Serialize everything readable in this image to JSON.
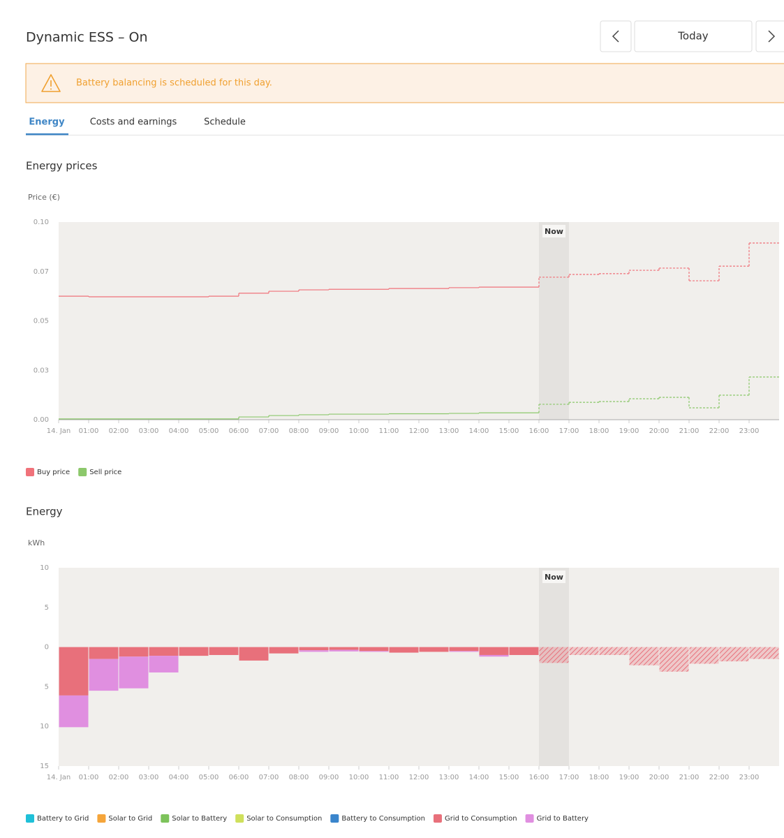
{
  "header": {
    "title": "Dynamic ESS – On",
    "date_label": "Today"
  },
  "alert": "Battery balancing is scheduled for this day.",
  "tabs": [
    "Energy",
    "Costs and earnings",
    "Schedule"
  ],
  "chart_data": [
    {
      "type": "line",
      "title": "Energy prices",
      "y_label": "Price (€)",
      "categories": [
        "14. Jan",
        "01:00",
        "02:00",
        "03:00",
        "04:00",
        "05:00",
        "06:00",
        "07:00",
        "08:00",
        "09:00",
        "10:00",
        "11:00",
        "12:00",
        "13:00",
        "14:00",
        "15:00",
        "16:00",
        "17:00",
        "18:00",
        "19:00",
        "20:00",
        "21:00",
        "22:00",
        "23:00"
      ],
      "now": {
        "label": "Now",
        "from": "16:00",
        "to": "17:00"
      },
      "ylim": [
        0,
        0.1
      ],
      "yticks": [
        {
          "value": 0,
          "label": "0.00"
        },
        {
          "value": 0.025,
          "label": "0.03"
        },
        {
          "value": 0.05,
          "label": "0.05"
        },
        {
          "value": 0.075,
          "label": "0.07"
        },
        {
          "value": 0.1,
          "label": "0.10"
        }
      ],
      "series": [
        {
          "name": "Buy price",
          "color": "#f0727a",
          "values": [
            0.0625,
            0.0622,
            0.0622,
            0.0622,
            0.0622,
            0.0625,
            0.064,
            0.065,
            0.0657,
            0.066,
            0.066,
            0.0664,
            0.0664,
            0.0668,
            0.0671,
            0.0671,
            0.0721,
            0.0735,
            0.0739,
            0.0756,
            0.0767,
            0.0703,
            0.0777,
            0.0894
          ]
        },
        {
          "name": "Sell price",
          "color": "#8cc86b",
          "values": [
            0.0004,
            0.0004,
            0.0004,
            0.0004,
            0.0004,
            0.0004,
            0.0014,
            0.0021,
            0.0025,
            0.0028,
            0.0028,
            0.003,
            0.003,
            0.0032,
            0.0035,
            0.0035,
            0.0078,
            0.0088,
            0.0092,
            0.0106,
            0.0113,
            0.006,
            0.0124,
            0.0216
          ]
        }
      ]
    },
    {
      "type": "bar",
      "title": "Energy",
      "y_label": "kWh",
      "categories": [
        "14. Jan",
        "01:00",
        "02:00",
        "03:00",
        "04:00",
        "05:00",
        "06:00",
        "07:00",
        "08:00",
        "09:00",
        "10:00",
        "11:00",
        "12:00",
        "13:00",
        "14:00",
        "15:00",
        "16:00",
        "17:00",
        "18:00",
        "19:00",
        "20:00",
        "21:00",
        "22:00",
        "23:00"
      ],
      "now": {
        "label": "Now",
        "from": "16:00",
        "to": "17:00"
      },
      "stacked": true,
      "ylim": [
        -15,
        10
      ],
      "yticks": [
        10,
        5,
        0,
        {
          "value": -5,
          "label": "5"
        },
        {
          "value": -10,
          "label": "10"
        },
        {
          "value": -15,
          "label": "15"
        }
      ],
      "series": [
        {
          "name": "Battery to Grid",
          "color": "#1fc0d8",
          "values": [
            0,
            0,
            0,
            0,
            0,
            0,
            0,
            0,
            0,
            0,
            0,
            0,
            0,
            0,
            0,
            0,
            0,
            0,
            0,
            0,
            0,
            0,
            0,
            0
          ]
        },
        {
          "name": "Solar to Grid",
          "color": "#f5a53a",
          "values": [
            0,
            0,
            0,
            0,
            0,
            0,
            0,
            0,
            0,
            0,
            0,
            0,
            0,
            0,
            0,
            0,
            0,
            0,
            0,
            0,
            0,
            0,
            0,
            0
          ]
        },
        {
          "name": "Solar to Battery",
          "color": "#7dc35b",
          "values": [
            0,
            0,
            0,
            0,
            0,
            0,
            0,
            0,
            0,
            0,
            0,
            0,
            0,
            0,
            0,
            0,
            0,
            0,
            0,
            0,
            0,
            0,
            0,
            0
          ]
        },
        {
          "name": "Solar to Consumption",
          "color": "#cfe05c",
          "values": [
            0,
            0,
            0,
            0,
            0,
            0,
            0,
            0,
            0,
            0,
            0,
            0,
            0,
            0,
            0,
            0,
            0,
            0,
            0,
            0,
            0,
            0,
            0,
            0
          ]
        },
        {
          "name": "Battery to Consumption",
          "color": "#3a85cc",
          "values": [
            0,
            0,
            0,
            0,
            0,
            0,
            0,
            0,
            0,
            0,
            0,
            0,
            0,
            0,
            0,
            0,
            0,
            0,
            0,
            0,
            0,
            0,
            0,
            0
          ]
        },
        {
          "name": "Grid to Consumption",
          "color": "#e8707b",
          "values": [
            -6.1,
            -1.5,
            -1.2,
            -1.1,
            -1.1,
            -1.0,
            -1.7,
            -0.8,
            -0.4,
            -0.35,
            -0.5,
            -0.7,
            -0.6,
            -0.5,
            -1.0,
            -1.0,
            -2.0,
            -1.0,
            -1.0,
            -2.3,
            -3.1,
            -2.1,
            -1.8,
            -1.5
          ]
        },
        {
          "name": "Grid to Battery",
          "color": "#e08fe0",
          "values": [
            -4.0,
            -4.0,
            -4.0,
            -2.1,
            0,
            0,
            0,
            0,
            -0.2,
            -0.2,
            -0.1,
            0,
            0,
            -0.1,
            -0.2,
            0,
            0,
            0,
            0,
            0,
            0,
            0,
            0,
            0
          ]
        }
      ]
    }
  ]
}
